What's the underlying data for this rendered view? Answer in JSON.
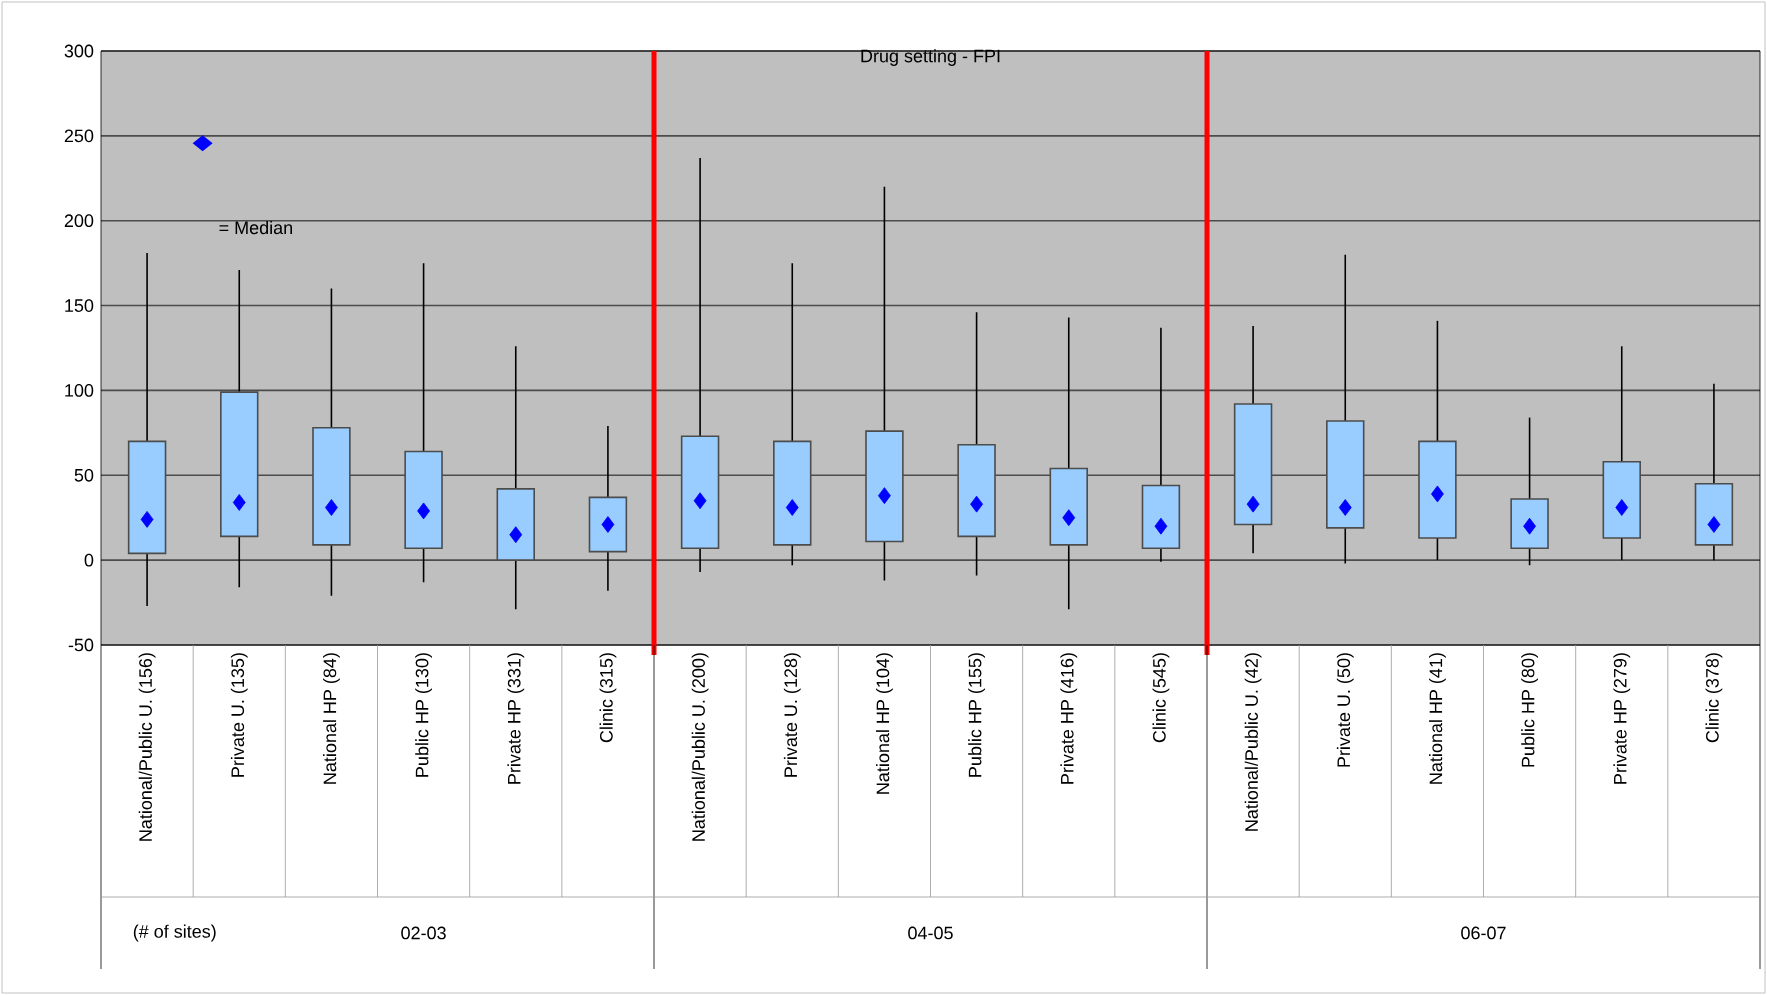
{
  "chart_data": {
    "type": "box",
    "title": "Drug setting - FPI",
    "categories": [
      "National/Public U. (156)",
      "Private U. (135)",
      "National HP (84)",
      "Public HP (130)",
      "Private HP (331)",
      "Clinic (315)",
      "National/Public U. (200)",
      "Private U. (128)",
      "National HP (104)",
      "Public HP (155)",
      "Private HP (416)",
      "Clinic (545)",
      "National/Public U. (42)",
      "Private U. (50)",
      "National HP (41)",
      "Public HP (80)",
      "Private HP (279)",
      "Clinic (378)"
    ],
    "series": [
      {
        "name": "= Median",
        "color": "#0000ff",
        "colors": [
          "#99ccff",
          "#99ccff",
          "#99ccff",
          "#99ccff",
          "#99ccff",
          "#99ccff",
          "#99ccff",
          "#99ccff",
          "#99ccff",
          "#99ccff",
          "#99ccff",
          "#99ccff",
          "#99ccff",
          "#99ccff",
          "#99ccff",
          "#99ccff",
          "#99ccff",
          "#99ccff"
        ],
        "boxes": [
          {
            "low": -27,
            "q1": 4,
            "median": 24,
            "q3": 70,
            "high": 181
          },
          {
            "low": -16,
            "q1": 14,
            "median": 34,
            "q3": 99,
            "high": 171
          },
          {
            "low": -21,
            "q1": 9,
            "median": 31,
            "q3": 78,
            "high": 160
          },
          {
            "low": -13,
            "q1": 7,
            "median": 29,
            "q3": 64,
            "high": 175
          },
          {
            "low": -29,
            "q1": 0,
            "median": 15,
            "q3": 42,
            "high": 126
          },
          {
            "low": -18,
            "q1": 5,
            "median": 21,
            "q3": 37,
            "high": 79
          },
          {
            "low": -7,
            "q1": 7,
            "median": 35,
            "q3": 73,
            "high": 237
          },
          {
            "low": -3,
            "q1": 9,
            "median": 31,
            "q3": 70,
            "high": 175
          },
          {
            "low": -12,
            "q1": 11,
            "median": 38,
            "q3": 76,
            "high": 220
          },
          {
            "low": -9,
            "q1": 14,
            "median": 33,
            "q3": 68,
            "high": 146
          },
          {
            "low": -29,
            "q1": 9,
            "median": 25,
            "q3": 54,
            "high": 143
          },
          {
            "low": -1,
            "q1": 7,
            "median": 20,
            "q3": 44,
            "high": 137
          },
          {
            "low": 4,
            "q1": 21,
            "median": 33,
            "q3": 92,
            "high": 138
          },
          {
            "low": -2,
            "q1": 19,
            "median": 31,
            "q3": 82,
            "high": 180
          },
          {
            "low": 0,
            "q1": 13,
            "median": 39,
            "q3": 70,
            "high": 141
          },
          {
            "low": -3,
            "q1": 7,
            "median": 20,
            "q3": 36,
            "high": 84
          },
          {
            "low": 0,
            "q1": 13,
            "median": 31,
            "q3": 58,
            "high": 126
          },
          {
            "low": 0,
            "q1": 9,
            "median": 21,
            "q3": 45,
            "high": 104
          }
        ]
      }
    ],
    "marker": "diamond",
    "ylim": [
      -50,
      300
    ],
    "yticks": [
      -50,
      0,
      50,
      100,
      150,
      200,
      250,
      300
    ],
    "grid": "y",
    "legend": "top left",
    "annotations": [
      "(# of sites)",
      "02-03",
      "04-05",
      "06-07"
    ]
  }
}
